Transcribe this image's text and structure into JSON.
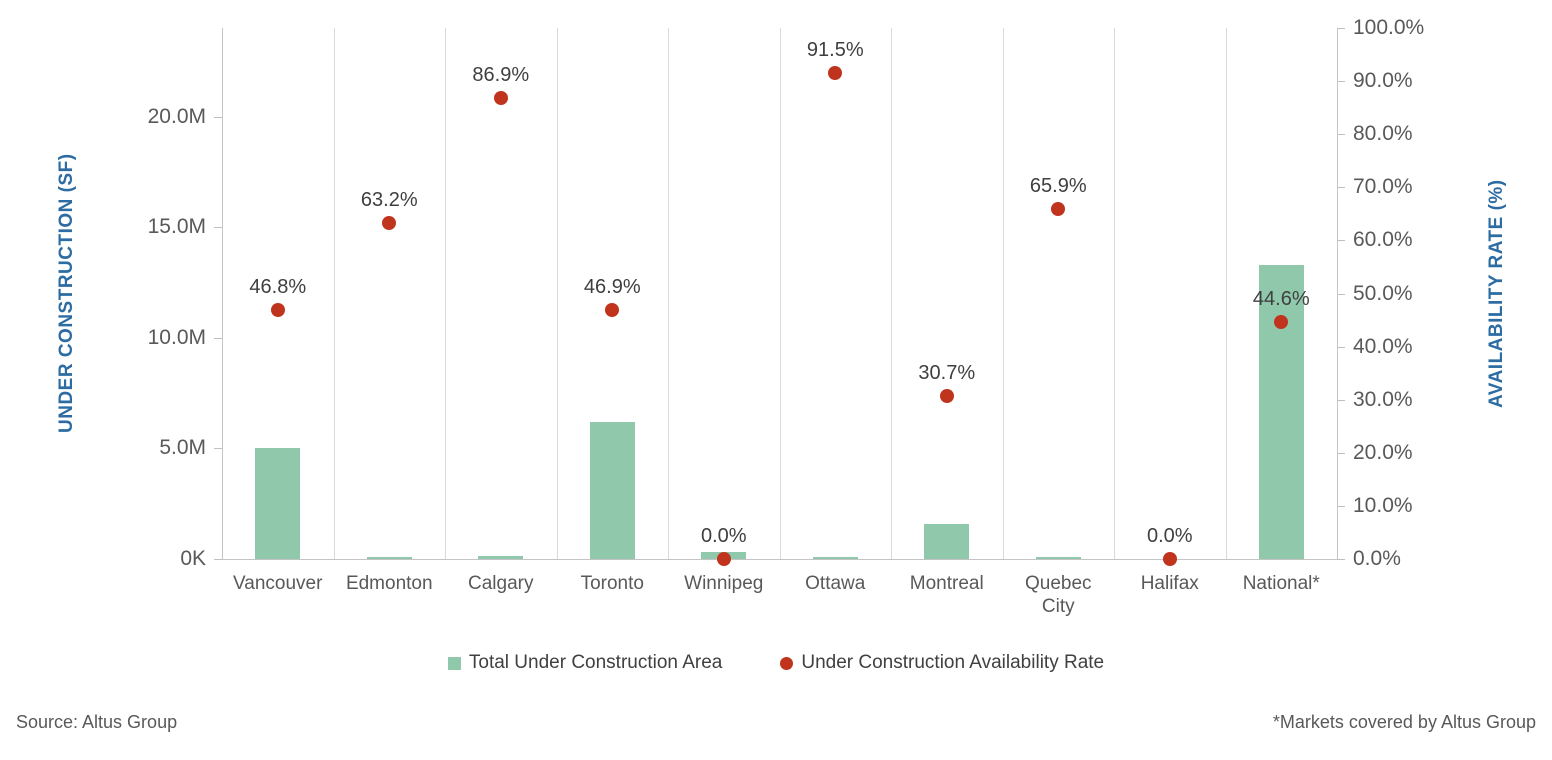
{
  "chart_data": {
    "type": "bar",
    "subtype": "combo-bar-scatter-dual-axis",
    "categories": [
      "Vancouver",
      "Edmonton",
      "Calgary",
      "Toronto",
      "Winnipeg",
      "Ottawa",
      "Montreal",
      "Quebec City",
      "Halifax",
      "National*"
    ],
    "category_display": [
      "Vancouver",
      "Edmonton",
      "Calgary",
      "Toronto",
      "Winnipeg",
      "Ottawa",
      "Montreal",
      "Quebec\nCity",
      "Halifax",
      "National*"
    ],
    "series": [
      {
        "name": "Total Under Construction Area",
        "type": "bar",
        "axis": "left",
        "unit": "SF millions",
        "values": [
          5.0,
          0.1,
          0.15,
          6.2,
          0.3,
          0.1,
          1.6,
          0.1,
          0.0,
          13.3
        ],
        "color": "#90C8AC"
      },
      {
        "name": "Under Construction Availability Rate",
        "type": "scatter",
        "axis": "right",
        "unit": "%",
        "values": [
          46.8,
          63.2,
          86.9,
          46.9,
          0.0,
          91.5,
          30.7,
          65.9,
          0.0,
          44.6
        ],
        "point_labels": [
          "46.8%",
          "63.2%",
          "86.9%",
          "46.9%",
          "0.0%",
          "91.5%",
          "30.7%",
          "65.9%",
          "0.0%",
          "44.6%"
        ],
        "color": "#C0341E"
      }
    ],
    "axes": {
      "left": {
        "title": "UNDER CONSTRUCTION (SF)",
        "tick_labels": [
          "0K",
          "5.0M",
          "10.0M",
          "15.0M",
          "20.0M"
        ],
        "tick_values": [
          0,
          5,
          10,
          15,
          20
        ],
        "range": [
          0,
          24
        ]
      },
      "right": {
        "title": "AVAILABILITY RATE (%)",
        "tick_labels": [
          "0.0%",
          "10.0%",
          "20.0%",
          "30.0%",
          "40.0%",
          "50.0%",
          "60.0%",
          "70.0%",
          "80.0%",
          "90.0%",
          "100.0%"
        ],
        "tick_values": [
          0,
          10,
          20,
          30,
          40,
          50,
          60,
          70,
          80,
          90,
          100
        ],
        "range": [
          0,
          100
        ]
      }
    },
    "grid": {
      "vertical_category_lines": true,
      "horizontal_lines": false
    },
    "legend": {
      "position": "bottom-center",
      "items": [
        {
          "label": "Total Under Construction Area",
          "marker": "square",
          "color": "#90C8AC"
        },
        {
          "label": "Under Construction Availability Rate",
          "marker": "circle",
          "color": "#C0341E"
        }
      ]
    }
  },
  "colors": {
    "bar_green": "#90C8AC",
    "dot_red": "#C0341E",
    "axis_title_blue": "#2D6CA2",
    "tick_gray": "#595959",
    "data_label_gray": "#3F3F3F",
    "gridline": "#D9D9D9",
    "axis_line": "#C4C4C4",
    "background": "#FFFFFF"
  },
  "footer": {
    "source": "Source: Altus Group",
    "note": "*Markets covered by Altus Group"
  }
}
